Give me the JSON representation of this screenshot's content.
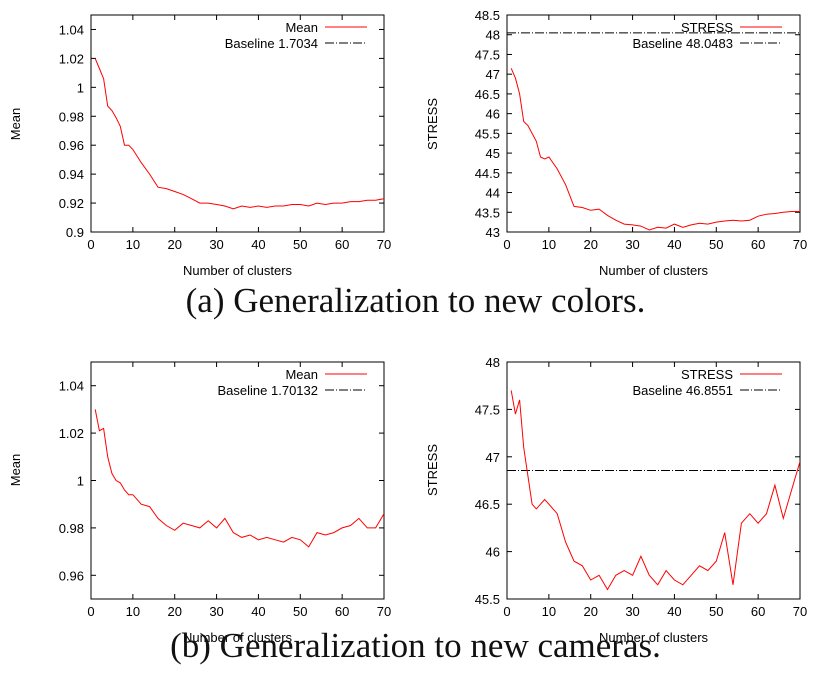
{
  "captions": {
    "a": "(a) Generalization to new colors.",
    "b": "(b) Generalization to new cameras."
  },
  "colors": {
    "series": "#ff0000",
    "baseline": "#000000",
    "axes": "#000000"
  },
  "chart_data": [
    {
      "type": "line",
      "xlabel": "Number of clusters",
      "ylabel": "Mean",
      "xlim": [
        0,
        70
      ],
      "ylim": [
        0.9,
        1.05
      ],
      "xticks": [
        "0",
        "10",
        "20",
        "30",
        "40",
        "50",
        "60",
        "70"
      ],
      "yticks": [
        "0.9",
        "0.92",
        "0.94",
        "0.96",
        "0.98",
        "1",
        "1.02",
        "1.04"
      ],
      "legend_position": "top-right",
      "series": [
        {
          "name": "Mean",
          "x": [
            1,
            2,
            3,
            4,
            5,
            6,
            7,
            8,
            9,
            10,
            12,
            14,
            16,
            18,
            20,
            22,
            24,
            26,
            28,
            30,
            32,
            34,
            36,
            38,
            40,
            42,
            44,
            46,
            48,
            50,
            52,
            54,
            56,
            58,
            60,
            62,
            64,
            66,
            68,
            70
          ],
          "values": [
            1.02,
            1.013,
            1.006,
            0.987,
            0.984,
            0.979,
            0.973,
            0.96,
            0.96,
            0.957,
            0.948,
            0.94,
            0.931,
            0.93,
            0.928,
            0.926,
            0.923,
            0.92,
            0.92,
            0.919,
            0.918,
            0.916,
            0.918,
            0.917,
            0.918,
            0.917,
            0.918,
            0.918,
            0.919,
            0.919,
            0.918,
            0.92,
            0.919,
            0.92,
            0.92,
            0.921,
            0.921,
            0.922,
            0.922,
            0.923
          ]
        }
      ],
      "baseline": {
        "label": "Baseline 1.7034",
        "value": 1.7034
      }
    },
    {
      "type": "line",
      "xlabel": "Number of clusters",
      "ylabel": "STRESS",
      "xlim": [
        0,
        70
      ],
      "ylim": [
        43,
        48.5
      ],
      "xticks": [
        "0",
        "10",
        "20",
        "30",
        "40",
        "50",
        "60",
        "70"
      ],
      "yticks": [
        "43",
        "43.5",
        "44",
        "44.5",
        "45",
        "45.5",
        "46",
        "46.5",
        "47",
        "47.5",
        "48",
        "48.5"
      ],
      "legend_position": "top-right",
      "series": [
        {
          "name": "STRESS",
          "x": [
            1,
            2,
            3,
            4,
            5,
            6,
            7,
            8,
            9,
            10,
            12,
            14,
            16,
            18,
            20,
            22,
            24,
            26,
            28,
            30,
            32,
            34,
            36,
            38,
            40,
            42,
            44,
            46,
            48,
            50,
            52,
            54,
            56,
            58,
            60,
            62,
            64,
            66,
            68,
            70
          ],
          "values": [
            47.15,
            46.9,
            46.5,
            45.8,
            45.7,
            45.5,
            45.3,
            44.9,
            44.85,
            44.9,
            44.6,
            44.2,
            43.65,
            43.62,
            43.55,
            43.58,
            43.42,
            43.3,
            43.2,
            43.18,
            43.15,
            43.05,
            43.12,
            43.1,
            43.2,
            43.12,
            43.18,
            43.22,
            43.2,
            43.25,
            43.28,
            43.3,
            43.28,
            43.3,
            43.4,
            43.45,
            43.47,
            43.5,
            43.52,
            43.52
          ]
        }
      ],
      "baseline": {
        "label": "Baseline 48.0483",
        "value": 48.0483
      }
    },
    {
      "type": "line",
      "xlabel": "Number of clusters",
      "ylabel": "Mean",
      "xlim": [
        0,
        70
      ],
      "ylim": [
        0.95,
        1.05
      ],
      "xticks": [
        "0",
        "10",
        "20",
        "30",
        "40",
        "50",
        "60",
        "70"
      ],
      "yticks": [
        "0.96",
        "0.98",
        "1",
        "1.02",
        "1.04"
      ],
      "legend_position": "top-right",
      "series": [
        {
          "name": "Mean",
          "x": [
            1,
            2,
            3,
            4,
            5,
            6,
            7,
            8,
            9,
            10,
            12,
            14,
            16,
            18,
            20,
            22,
            24,
            26,
            28,
            30,
            32,
            34,
            36,
            38,
            40,
            42,
            44,
            46,
            48,
            50,
            52,
            54,
            56,
            58,
            60,
            62,
            64,
            66,
            68,
            70
          ],
          "values": [
            1.03,
            1.021,
            1.022,
            1.01,
            1.003,
            1,
            0.999,
            0.996,
            0.994,
            0.994,
            0.99,
            0.989,
            0.984,
            0.981,
            0.979,
            0.982,
            0.981,
            0.98,
            0.983,
            0.98,
            0.984,
            0.978,
            0.976,
            0.977,
            0.975,
            0.976,
            0.975,
            0.974,
            0.976,
            0.975,
            0.972,
            0.978,
            0.977,
            0.978,
            0.98,
            0.981,
            0.984,
            0.98,
            0.98,
            0.986
          ]
        }
      ],
      "baseline": {
        "label": "Baseline 1.70132",
        "value": 1.70132
      }
    },
    {
      "type": "line",
      "xlabel": "Number of clusters",
      "ylabel": "STRESS",
      "xlim": [
        0,
        70
      ],
      "ylim": [
        45.5,
        48
      ],
      "xticks": [
        "0",
        "10",
        "20",
        "30",
        "40",
        "50",
        "60",
        "70"
      ],
      "yticks": [
        "45.5",
        "46",
        "46.5",
        "47",
        "47.5",
        "48"
      ],
      "legend_position": "top-right",
      "series": [
        {
          "name": "STRESS",
          "x": [
            1,
            2,
            3,
            4,
            5,
            6,
            7,
            8,
            9,
            10,
            12,
            14,
            16,
            18,
            20,
            22,
            24,
            26,
            28,
            30,
            32,
            34,
            36,
            38,
            40,
            42,
            44,
            46,
            48,
            50,
            52,
            54,
            56,
            58,
            60,
            62,
            64,
            66,
            68,
            70
          ],
          "values": [
            47.7,
            47.45,
            47.6,
            47.1,
            46.8,
            46.5,
            46.45,
            46.5,
            46.55,
            46.5,
            46.4,
            46.1,
            45.9,
            45.85,
            45.7,
            45.75,
            45.6,
            45.75,
            45.8,
            45.75,
            45.95,
            45.75,
            45.65,
            45.8,
            45.7,
            45.65,
            45.75,
            45.85,
            45.8,
            45.9,
            46.2,
            45.65,
            46.3,
            46.4,
            46.3,
            46.4,
            46.7,
            46.35,
            46.65,
            46.95
          ]
        }
      ],
      "baseline": {
        "label": "Baseline 46.8551",
        "value": 46.8551
      }
    }
  ]
}
